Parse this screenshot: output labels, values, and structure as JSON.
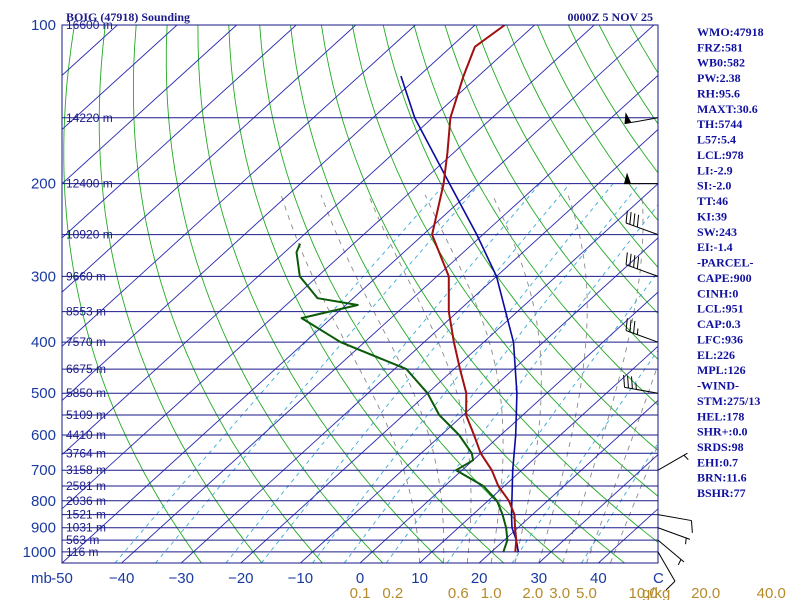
{
  "chart_data": {
    "type": "skew-t sounding",
    "title": "BOIG (47918) Sounding",
    "time": "0000Z  5 NOV 25",
    "pressure_unit": "mb",
    "pressure_ticks": [
      100,
      200,
      300,
      400,
      500,
      600,
      700,
      800,
      900,
      1000
    ],
    "pressure_tick_labels": [
      "100",
      "200",
      "300",
      "400",
      "500",
      "600",
      "700",
      "800",
      "900",
      "1000"
    ],
    "height_levels": [
      {
        "p": 100,
        "label": "16600 m"
      },
      {
        "p": 150,
        "label": "14220 m"
      },
      {
        "p": 200,
        "label": "12400 m"
      },
      {
        "p": 250,
        "label": "10920 m"
      },
      {
        "p": 300,
        "label": "9660 m"
      },
      {
        "p": 350,
        "label": "8553 m"
      },
      {
        "p": 400,
        "label": "7570 m"
      },
      {
        "p": 450,
        "label": "6675 m"
      },
      {
        "p": 500,
        "label": "5850 m"
      },
      {
        "p": 550,
        "label": "5109 m"
      },
      {
        "p": 600,
        "label": "4410 m"
      },
      {
        "p": 650,
        "label": "3764 m"
      },
      {
        "p": 700,
        "label": "3158 m"
      },
      {
        "p": 750,
        "label": "2581 m"
      },
      {
        "p": 800,
        "label": "2036 m"
      },
      {
        "p": 850,
        "label": "1521 m"
      },
      {
        "p": 900,
        "label": "1031 m"
      },
      {
        "p": 950,
        "label": "563 m"
      },
      {
        "p": 1000,
        "label": "116 m"
      }
    ],
    "temperature_ticks": [
      -50,
      -40,
      -30,
      -20,
      -10,
      0,
      10,
      20,
      30,
      40
    ],
    "temperature_tick_labels": [
      "-50",
      "−40",
      "−30",
      "−20",
      "−10",
      "0",
      "10",
      "20",
      "30",
      "40"
    ],
    "temperature_unit_label": "C",
    "mixing_ratio_ticks": [
      {
        "x": 0.0,
        "label": "0.1"
      },
      {
        "x": 5.5,
        "label": "0.2"
      },
      {
        "x": 16.5,
        "label": "0.6"
      },
      {
        "x": 22.0,
        "label": "1.0"
      },
      {
        "x": 29.0,
        "label": "2.0"
      },
      {
        "x": 33.5,
        "label": "3.0"
      },
      {
        "x": 38.0,
        "label": "5.0"
      },
      {
        "x": 47.5,
        "label": "10.0"
      },
      {
        "x": 58.0,
        "label": "20.0"
      },
      {
        "x": 69.0,
        "label": "40.0"
      }
    ],
    "mixing_ratio_unit": "g/kg",
    "temperature_profile": [
      {
        "p": 1000,
        "t": 24.0
      },
      {
        "p": 950,
        "t": 22.0
      },
      {
        "p": 900,
        "t": 19.5
      },
      {
        "p": 850,
        "t": 17.0
      },
      {
        "p": 800,
        "t": 13.5
      },
      {
        "p": 750,
        "t": 9.0
      },
      {
        "p": 700,
        "t": 5.0
      },
      {
        "p": 650,
        "t": 0.0
      },
      {
        "p": 600,
        "t": -4.5
      },
      {
        "p": 550,
        "t": -9.5
      },
      {
        "p": 500,
        "t": -13.5
      },
      {
        "p": 450,
        "t": -19.0
      },
      {
        "p": 400,
        "t": -25.0
      },
      {
        "p": 350,
        "t": -31.5
      },
      {
        "p": 300,
        "t": -38.0
      },
      {
        "p": 250,
        "t": -48.5
      },
      {
        "p": 200,
        "t": -56.0
      },
      {
        "p": 175,
        "t": -61.0
      },
      {
        "p": 150,
        "t": -67.0
      },
      {
        "p": 125,
        "t": -72.5
      },
      {
        "p": 110,
        "t": -76.0
      },
      {
        "p": 100,
        "t": -75.0
      }
    ],
    "dewpoint_profile": [
      {
        "p": 1000,
        "t": 22.0
      },
      {
        "p": 950,
        "t": 20.5
      },
      {
        "p": 900,
        "t": 18.0
      },
      {
        "p": 850,
        "t": 15.0
      },
      {
        "p": 800,
        "t": 11.5
      },
      {
        "p": 750,
        "t": 6.5
      },
      {
        "p": 700,
        "t": -1.0
      },
      {
        "p": 670,
        "t": 0.0
      },
      {
        "p": 650,
        "t": -1.5
      },
      {
        "p": 600,
        "t": -7.0
      },
      {
        "p": 550,
        "t": -14.0
      },
      {
        "p": 500,
        "t": -20.0
      },
      {
        "p": 450,
        "t": -28.0
      },
      {
        "p": 400,
        "t": -44.0
      },
      {
        "p": 360,
        "t": -55.0
      },
      {
        "p": 340,
        "t": -48.0
      },
      {
        "p": 330,
        "t": -56.0
      },
      {
        "p": 300,
        "t": -63.0
      },
      {
        "p": 270,
        "t": -68.0
      },
      {
        "p": 260,
        "t": -69.0
      }
    ],
    "parcel_profile": [
      {
        "p": 1000,
        "t": 24.5
      },
      {
        "p": 950,
        "t": 22.0
      },
      {
        "p": 900,
        "t": 19.0
      },
      {
        "p": 850,
        "t": 16.5
      },
      {
        "p": 800,
        "t": 14.0
      },
      {
        "p": 700,
        "t": 8.5
      },
      {
        "p": 600,
        "t": 2.5
      },
      {
        "p": 500,
        "t": -5.0
      },
      {
        "p": 400,
        "t": -15.0
      },
      {
        "p": 300,
        "t": -30.0
      },
      {
        "p": 250,
        "t": -41.0
      },
      {
        "p": 200,
        "t": -55.0
      },
      {
        "p": 150,
        "t": -73.0
      },
      {
        "p": 125,
        "t": -83.0
      }
    ],
    "wind_barbs": [
      {
        "p": 1000,
        "dir": 150,
        "spd": 10
      },
      {
        "p": 950,
        "dir": 130,
        "spd": 5
      },
      {
        "p": 900,
        "dir": 110,
        "spd": 5
      },
      {
        "p": 850,
        "dir": 100,
        "spd": 10
      },
      {
        "p": 700,
        "dir": 60,
        "spd": 5
      },
      {
        "p": 500,
        "dir": 280,
        "spd": 35
      },
      {
        "p": 400,
        "dir": 290,
        "spd": 35
      },
      {
        "p": 300,
        "dir": 290,
        "spd": 40
      },
      {
        "p": 250,
        "dir": 290,
        "spd": 40
      },
      {
        "p": 200,
        "dir": 270,
        "spd": 50
      },
      {
        "p": 150,
        "dir": 260,
        "spd": 50
      }
    ],
    "pressure_range": [
      100,
      1050
    ],
    "temperature_range_at_base": [
      -50,
      50
    ],
    "colors": {
      "isobar": "#1a1a8a",
      "isotherm": "#2a2ab0",
      "dry_adiabat": "#22aa22",
      "moist_adiabat": "#8a8a8a",
      "mixing_ratio": "#3aaad8",
      "temperature": "#a01010",
      "dewpoint": "#0a5a0a",
      "parcel": "#0a0aa0",
      "frame": "#1a1a8a"
    }
  },
  "indices": [
    "WMO:47918",
    "FRZ:581",
    "WB0:582",
    "PW:2.38",
    "RH:95.6",
    "MAXT:30.6",
    "TH:5744",
    "L57:5.4",
    "LCL:978",
    "LI:-2.9",
    "SI:-2.0",
    "TT:46",
    "KI:39",
    "SW:243",
    "EI:-1.4",
    "-PARCEL-",
    "CAPE:900",
    "CINH:0",
    "LCL:951",
    "CAP:0.3",
    "LFC:936",
    "EL:226",
    "MPL:126",
    "-WIND-",
    "STM:275/13",
    "HEL:178",
    "SHR+:0.0",
    "SRDS:98",
    "EHI:0.7",
    "BRN:11.6",
    "BSHR:77"
  ]
}
